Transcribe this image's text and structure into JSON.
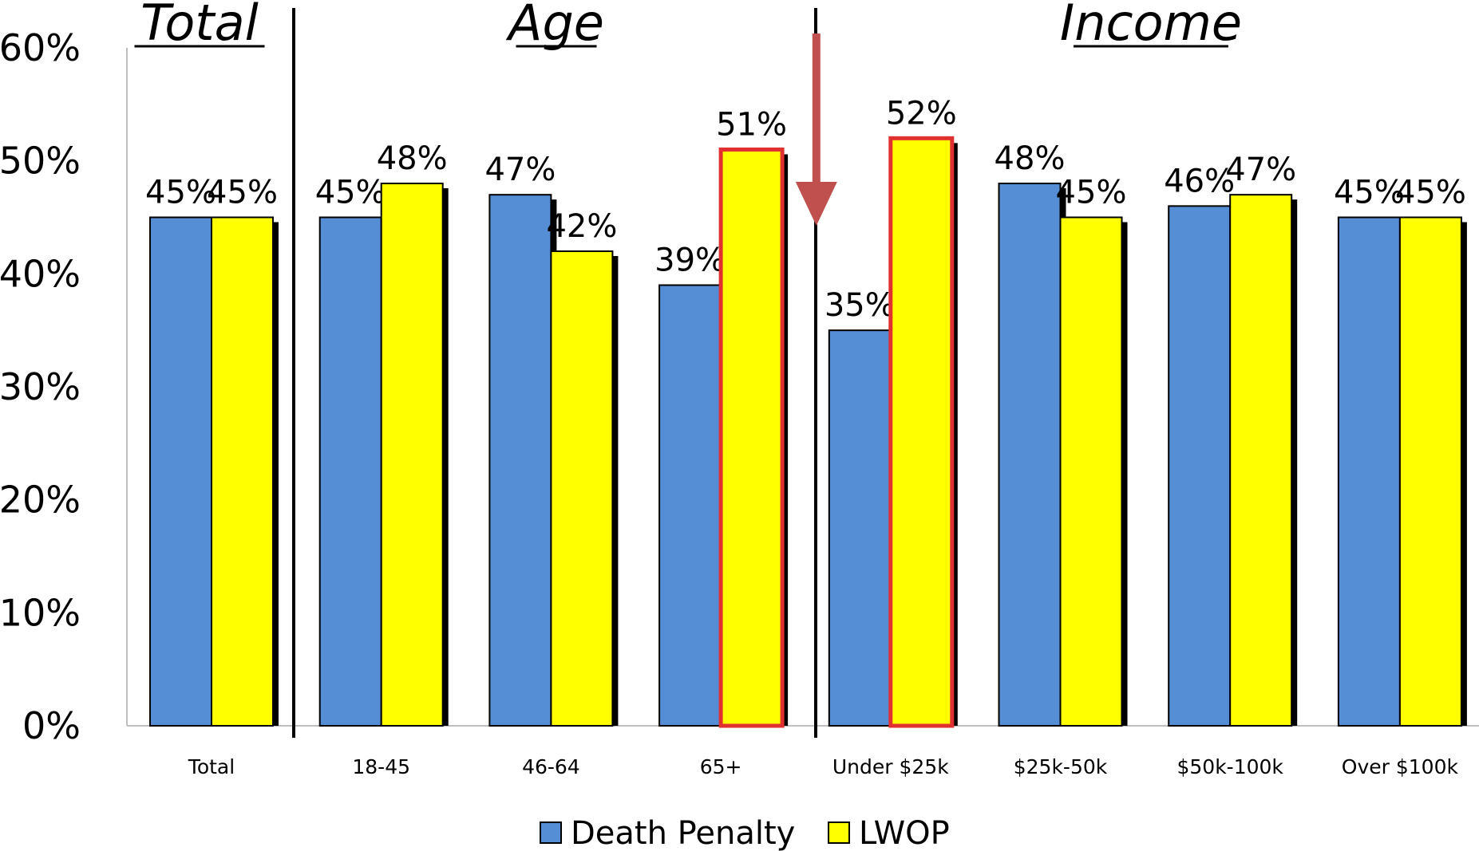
{
  "chart_data": {
    "type": "bar",
    "categories": [
      "Total",
      "18-45",
      "46-64",
      "65+",
      "Under $25k",
      "$25k-50k",
      "$50k-100k",
      "Over $100k"
    ],
    "series": [
      {
        "name": "Death Penalty",
        "values": [
          45,
          45,
          47,
          39,
          35,
          48,
          46,
          45
        ],
        "labels": [
          "45%",
          "45%",
          "47%",
          "39%",
          "35%",
          "48%",
          "46%",
          "45%"
        ],
        "color": "#558ED5"
      },
      {
        "name": "LWOP",
        "values": [
          45,
          48,
          42,
          51,
          52,
          45,
          47,
          45
        ],
        "labels": [
          "45%",
          "48%",
          "42%",
          "51%",
          "52%",
          "45%",
          "47%",
          "45%"
        ],
        "color": "#FFFF00"
      }
    ],
    "highlighted": [
      {
        "series": "LWOP",
        "category": "65+"
      },
      {
        "series": "LWOP",
        "category": "Under $25k"
      }
    ],
    "highlight_color": "#E03030",
    "arrow": {
      "category": "Under $25k",
      "direction": "down",
      "color": "#C0504D"
    },
    "y_ticks": [
      "0%",
      "10%",
      "20%",
      "30%",
      "40%",
      "50%",
      "60%"
    ],
    "ylim": [
      0,
      60
    ],
    "groups": [
      {
        "title": "Total",
        "categories": [
          "Total"
        ]
      },
      {
        "title": "Age",
        "categories": [
          "18-45",
          "46-64",
          "65+"
        ]
      },
      {
        "title": "Income",
        "categories": [
          "Under $25k",
          "$25k-50k",
          "$50k-100k",
          "Over $100k"
        ]
      }
    ],
    "legend": {
      "position": "bottom",
      "entries": [
        "Death Penalty",
        "LWOP"
      ]
    },
    "grid": false
  }
}
